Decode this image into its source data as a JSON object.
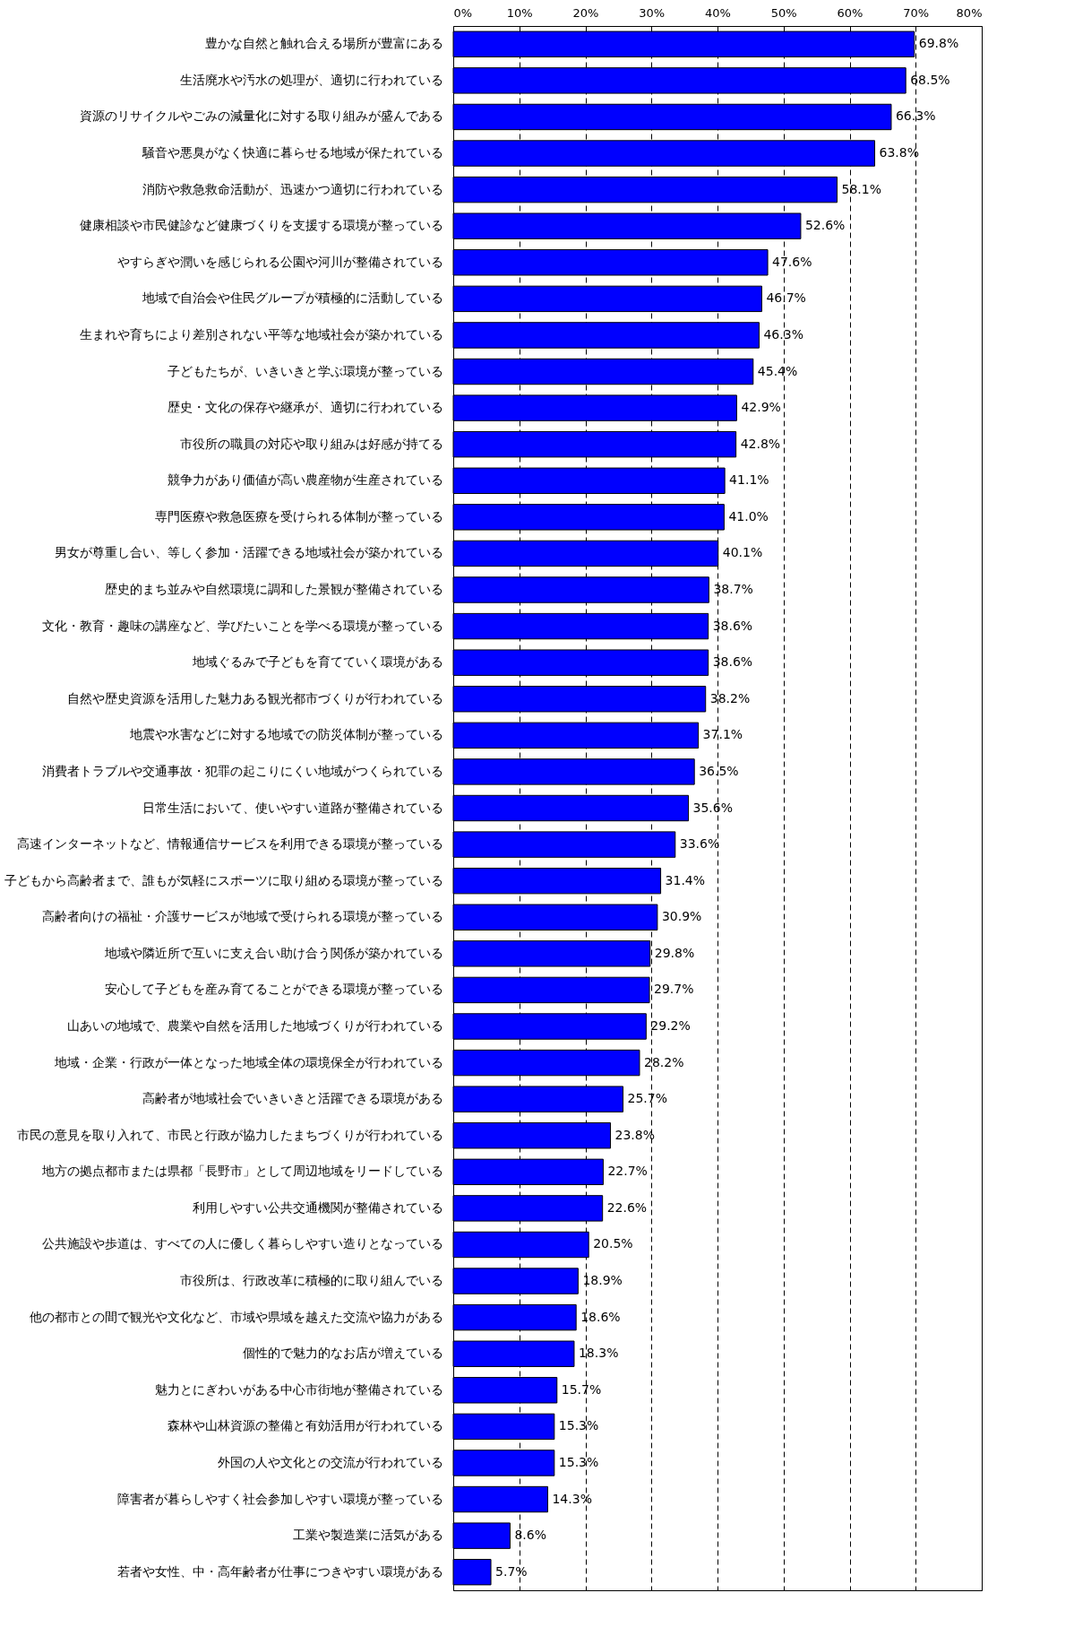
{
  "chart_data": {
    "type": "bar",
    "orientation": "horizontal",
    "color": "#0000ff",
    "grid": "x",
    "categories": [
      "豊かな自然と触れ合える場所が豊富にある",
      "生活廃水や汚水の処理が、適切に行われている",
      "資源のリサイクルやごみの減量化に対する取り組みが盛んである",
      "騒音や悪臭がなく快適に暮らせる地域が保たれている",
      "消防や救急救命活動が、迅速かつ適切に行われている",
      "健康相談や市民健診など健康づくりを支援する環境が整っている",
      "やすらぎや潤いを感じられる公園や河川が整備されている",
      "地域で自治会や住民グループが積極的に活動している",
      "生まれや育ちにより差別されない平等な地域社会が築かれている",
      "子どもたちが、いきいきと学ぶ環境が整っている",
      "歴史・文化の保存や継承が、適切に行われている",
      "市役所の職員の対応や取り組みは好感が持てる",
      "競争力があり価値が高い農産物が生産されている",
      "専門医療や救急医療を受けられる体制が整っている",
      "男女が尊重し合い、等しく参加・活躍できる地域社会が築かれている",
      "歴史的まち並みや自然環境に調和した景観が整備されている",
      "文化・教育・趣味の講座など、学びたいことを学べる環境が整っている",
      "地域ぐるみで子どもを育てていく環境がある",
      "自然や歴史資源を活用した魅力ある観光都市づくりが行われている",
      "地震や水害などに対する地域での防災体制が整っている",
      "消費者トラブルや交通事故・犯罪の起こりにくい地域がつくられている",
      "日常生活において、使いやすい道路が整備されている",
      "高速インターネットなど、情報通信サービスを利用できる環境が整っている",
      "子どもから高齢者まで、誰もが気軽にスポーツに取り組める環境が整っている",
      "高齢者向けの福祉・介護サービスが地域で受けられる環境が整っている",
      "地域や隣近所で互いに支え合い助け合う関係が築かれている",
      "安心して子どもを産み育てることができる環境が整っている",
      "山あいの地域で、農業や自然を活用した地域づくりが行われている",
      "地域・企業・行政が一体となった地域全体の環境保全が行われている",
      "高齢者が地域社会でいきいきと活躍できる環境がある",
      "市民の意見を取り入れて、市民と行政が協力したまちづくりが行われている",
      "地方の拠点都市または県都「長野市」として周辺地域をリードしている",
      "利用しやすい公共交通機関が整備されている",
      "公共施設や歩道は、すべての人に優しく暮らしやすい造りとなっている",
      "市役所は、行政改革に積極的に取り組んでいる",
      "他の都市との間で観光や文化など、市域や県域を越えた交流や協力がある",
      "個性的で魅力的なお店が増えている",
      "魅力とにぎわいがある中心市街地が整備されている",
      "森林や山林資源の整備と有効活用が行われている",
      "外国の人や文化との交流が行われている",
      "障害者が暮らしやすく社会参加しやすい環境が整っている",
      "工業や製造業に活気がある",
      "若者や女性、中・高年齢者が仕事につきやすい環境がある"
    ],
    "values": [
      69.8,
      68.5,
      66.3,
      63.8,
      58.1,
      52.6,
      47.6,
      46.7,
      46.3,
      45.4,
      42.9,
      42.8,
      41.1,
      41.0,
      40.1,
      38.7,
      38.6,
      38.6,
      38.2,
      37.1,
      36.5,
      35.6,
      33.6,
      31.4,
      30.9,
      29.8,
      29.7,
      29.2,
      28.2,
      25.7,
      23.8,
      22.7,
      22.6,
      20.5,
      18.9,
      18.6,
      18.3,
      15.7,
      15.3,
      15.3,
      14.3,
      8.6,
      5.7
    ],
    "value_labels": [
      "69.8%",
      "68.5%",
      "66.3%",
      "63.8%",
      "58.1%",
      "52.6%",
      "47.6%",
      "46.7%",
      "46.3%",
      "45.4%",
      "42.9%",
      "42.8%",
      "41.1%",
      "41.0%",
      "40.1%",
      "38.7%",
      "38.6%",
      "38.6%",
      "38.2%",
      "37.1%",
      "36.5%",
      "35.6%",
      "33.6%",
      "31.4%",
      "30.9%",
      "29.8%",
      "29.7%",
      "29.2%",
      "28.2%",
      "25.7%",
      "23.8%",
      "22.7%",
      "22.6%",
      "20.5%",
      "18.9%",
      "18.6%",
      "18.3%",
      "15.7%",
      "15.3%",
      "15.3%",
      "14.3%",
      "8.6%",
      "5.7%"
    ],
    "xlim": [
      0,
      80
    ],
    "xticks": [
      {
        "value": 0,
        "label": "0%"
      },
      {
        "value": 10,
        "label": "10%"
      },
      {
        "value": 20,
        "label": "20%"
      },
      {
        "value": 30,
        "label": "30%"
      },
      {
        "value": 40,
        "label": "40%"
      },
      {
        "value": 50,
        "label": "50%"
      },
      {
        "value": 60,
        "label": "60%"
      },
      {
        "value": 70,
        "label": "70%"
      },
      {
        "value": 80,
        "label": "80%"
      }
    ]
  }
}
